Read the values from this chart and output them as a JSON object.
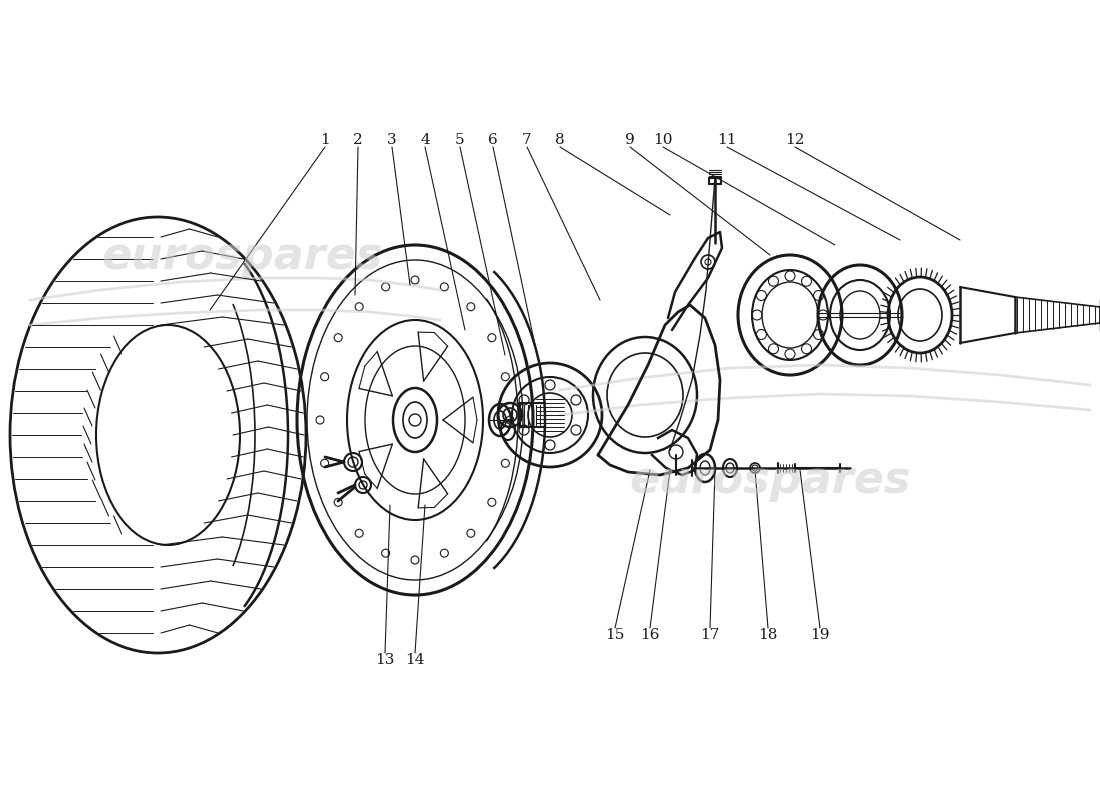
{
  "bg": "#ffffff",
  "lc": "#1a1a1a",
  "wc": "#cccccc",
  "wm_text": "eurospares",
  "wm1": [
    0.22,
    0.32
  ],
  "wm2": [
    0.7,
    0.6
  ],
  "car_sil1_top_x": [
    30,
    100,
    180,
    260,
    320,
    370,
    410,
    440
  ],
  "car_sil1_top_y": [
    300,
    290,
    282,
    278,
    278,
    280,
    285,
    290
  ],
  "car_sil1_bot_x": [
    30,
    100,
    180,
    260,
    320,
    370,
    410,
    440
  ],
  "car_sil1_bot_y": [
    325,
    318,
    313,
    310,
    310,
    312,
    316,
    320
  ],
  "car_sil2_top_x": [
    560,
    640,
    730,
    820,
    910,
    1000,
    1090
  ],
  "car_sil2_top_y": [
    390,
    378,
    368,
    365,
    368,
    375,
    385
  ],
  "car_sil2_bot_x": [
    560,
    640,
    730,
    820,
    910,
    1000,
    1090
  ],
  "car_sil2_bot_y": [
    415,
    405,
    398,
    394,
    396,
    402,
    410
  ],
  "labels": [
    "1",
    "2",
    "3",
    "4",
    "5",
    "6",
    "7",
    "8",
    "9",
    "10",
    "11",
    "12",
    "13",
    "14",
    "15",
    "16",
    "17",
    "18",
    "19"
  ],
  "lx": [
    325,
    358,
    392,
    425,
    460,
    493,
    527,
    560,
    630,
    663,
    727,
    795,
    385,
    415,
    615,
    650,
    710,
    768,
    820
  ],
  "ly": [
    140,
    140,
    140,
    140,
    140,
    140,
    140,
    140,
    140,
    140,
    140,
    140,
    660,
    660,
    635,
    635,
    635,
    635,
    635
  ],
  "ax": [
    210,
    355,
    410,
    465,
    505,
    535,
    600,
    670,
    770,
    835,
    900,
    960,
    390,
    425,
    650,
    670,
    715,
    755,
    800
  ],
  "ay": [
    310,
    295,
    285,
    330,
    355,
    345,
    300,
    215,
    255,
    245,
    240,
    240,
    505,
    505,
    470,
    470,
    470,
    470,
    470
  ]
}
